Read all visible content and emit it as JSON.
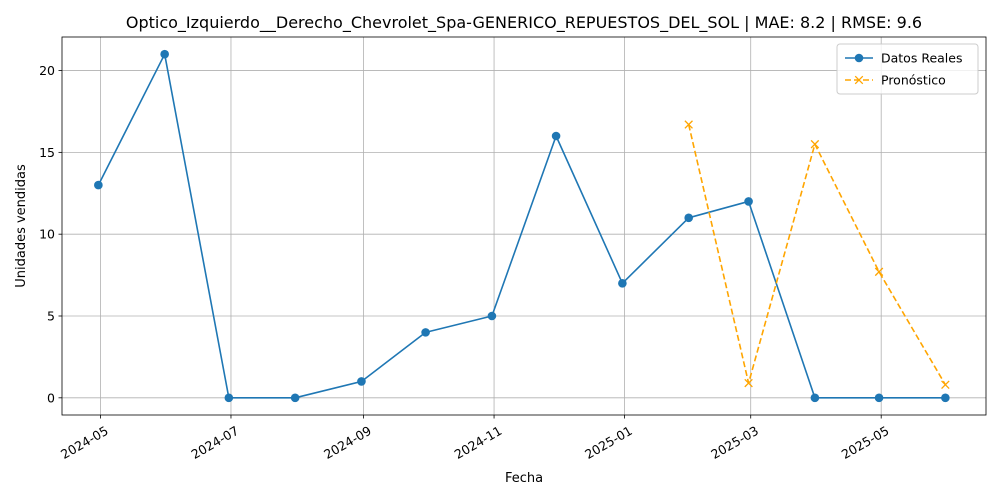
{
  "chart_data": {
    "type": "line",
    "title": "Optico_Izquierdo__Derecho_Chevrolet_Spa-GENERICO_REPUESTOS_DEL_SOL | MAE: 8.2 | RMSE: 9.6",
    "xlabel": "Fecha",
    "ylabel": "Unidades vendidas",
    "grid": true,
    "legend_position": "top-right",
    "ylim": [
      -1.05,
      22.05
    ],
    "xlim": [
      "2024-04-13",
      "2025-06-19"
    ],
    "yticks": [
      0,
      5,
      10,
      15,
      20
    ],
    "ytick_labels": [
      "0",
      "5",
      "10",
      "15",
      "20"
    ],
    "xticks": [
      "2024-05-01",
      "2024-07-01",
      "2024-09-01",
      "2024-11-01",
      "2025-01-01",
      "2025-03-01",
      "2025-05-01"
    ],
    "xtick_labels": [
      "2024-05",
      "2024-07",
      "2024-09",
      "2024-11",
      "2025-01",
      "2025-03",
      "2025-05"
    ],
    "series": [
      {
        "name": "Datos Reales",
        "color": "#1f77b4",
        "linestyle": "solid",
        "marker": "circle",
        "x": [
          "2024-04-30",
          "2024-05-31",
          "2024-06-30",
          "2024-07-31",
          "2024-08-31",
          "2024-09-30",
          "2024-10-31",
          "2024-11-30",
          "2024-12-31",
          "2025-01-31",
          "2025-02-28",
          "2025-03-31",
          "2025-04-30",
          "2025-05-31"
        ],
        "values": [
          13,
          21,
          0,
          0,
          1,
          4,
          5,
          16,
          7,
          11,
          12,
          0,
          0,
          0
        ]
      },
      {
        "name": "Pronóstico",
        "color": "#ffa500",
        "linestyle": "dashed",
        "marker": "x",
        "x": [
          "2025-01-31",
          "2025-02-28",
          "2025-03-31",
          "2025-04-30",
          "2025-05-31"
        ],
        "values": [
          16.7,
          0.9,
          15.5,
          7.7,
          0.8
        ]
      }
    ]
  }
}
